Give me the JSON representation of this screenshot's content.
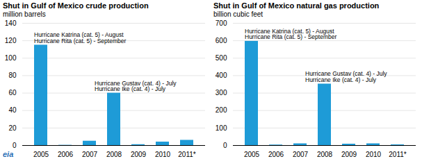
{
  "logo": "eia",
  "chart_data": [
    {
      "type": "bar",
      "title": "Shut in Gulf of Mexico crude production",
      "subtitle": "million barrels",
      "categories": [
        "2005",
        "2006",
        "2007",
        "2008",
        "2009",
        "2010",
        "2011*"
      ],
      "values": [
        115,
        0.3,
        5,
        60,
        1,
        4,
        6
      ],
      "color": "#1e9bd7",
      "ylim": [
        0,
        140
      ],
      "yticks": [
        0,
        20,
        40,
        60,
        80,
        100,
        120,
        140
      ],
      "grid": true,
      "annotations": [
        {
          "category": "2005",
          "lines": [
            "Hurricane Katrina (cat. 5) - August",
            "Hurricane Rita (cat. 5) - September"
          ]
        },
        {
          "category": "2008",
          "lines": [
            "Hurricane Gustav (cat. 4) - July",
            "Hurricane Ike (cat. 4) - July"
          ]
        }
      ]
    },
    {
      "type": "bar",
      "title": "Shut in Gulf of Mexico natural gas production",
      "subtitle": "billion cubic feet",
      "categories": [
        "2005",
        "2006",
        "2007",
        "2008",
        "2009",
        "2010",
        "2011*"
      ],
      "values": [
        597,
        3,
        10,
        352,
        8,
        10,
        4
      ],
      "color": "#1e9bd7",
      "ylim": [
        0,
        700
      ],
      "yticks": [
        0,
        100,
        200,
        300,
        400,
        500,
        600,
        700
      ],
      "grid": true,
      "annotations": [
        {
          "category": "2005",
          "lines": [
            "Hurricane Katrina (cat. 5) - August",
            "Hurricane Rita (cat. 5) - September"
          ]
        },
        {
          "category": "2008",
          "lines": [
            "Hurricane Gustav (cat. 4) - July",
            "Hurricane Ike (cat. 4) - July"
          ]
        }
      ]
    }
  ]
}
